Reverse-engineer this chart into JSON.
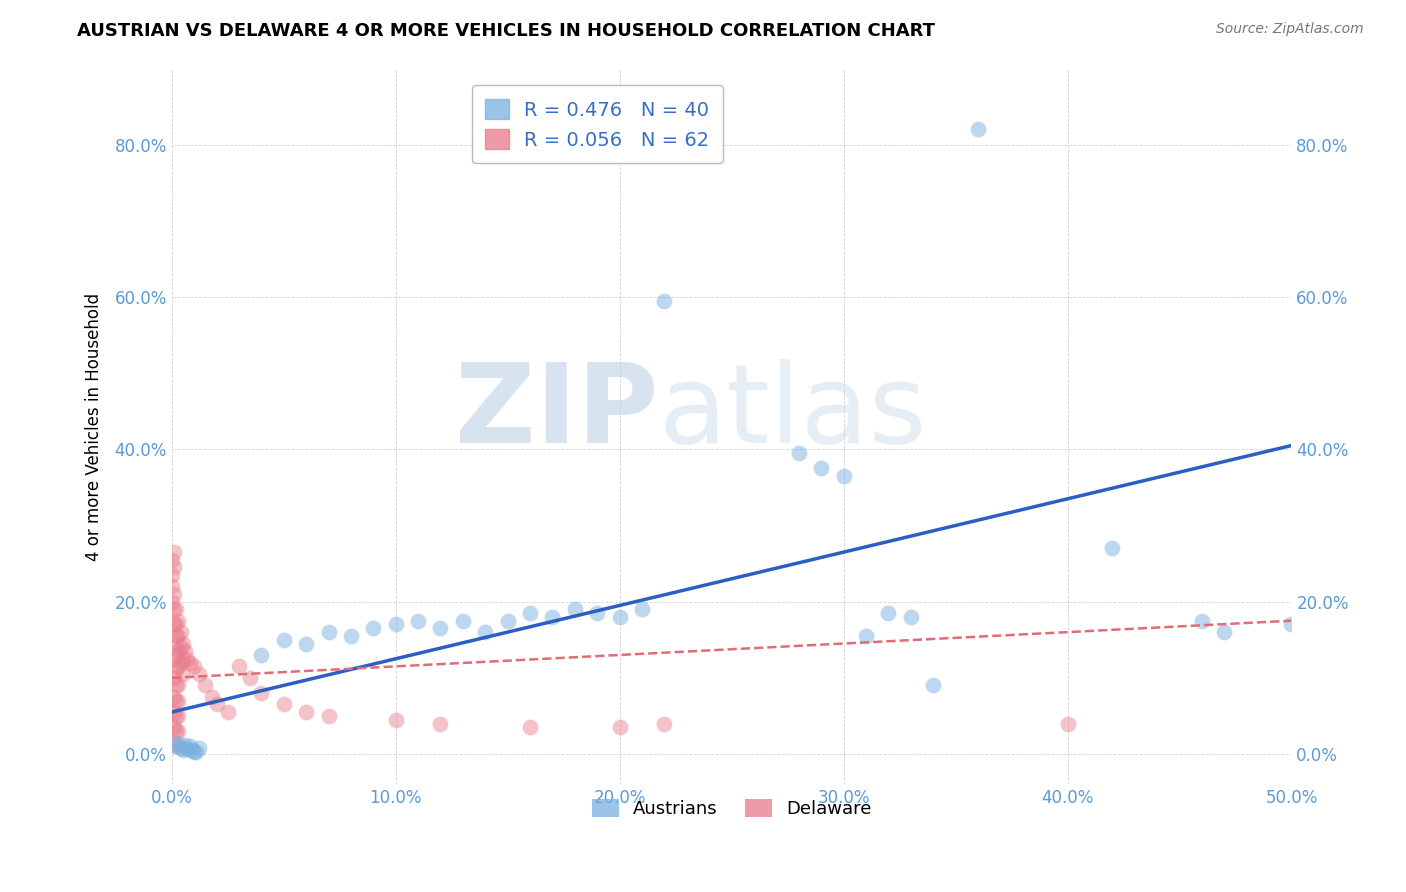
{
  "title": "AUSTRIAN VS DELAWARE 4 OR MORE VEHICLES IN HOUSEHOLD CORRELATION CHART",
  "source": "Source: ZipAtlas.com",
  "ylabel": "4 or more Vehicles in Household",
  "xlabel_ticks": [
    "0.0%",
    "10.0%",
    "20.0%",
    "30.0%",
    "40.0%",
    "50.0%"
  ],
  "ylabel_ticks_right": [
    "80.0%",
    "60.0%",
    "40.0%",
    "20.0%",
    "0.0%"
  ],
  "xlim": [
    0.0,
    0.5
  ],
  "ylim": [
    -0.04,
    0.9
  ],
  "blue_color": "#7ab0e0",
  "pink_color": "#e87a8a",
  "blue_scatter": [
    [
      0.002,
      0.01
    ],
    [
      0.003,
      0.015
    ],
    [
      0.004,
      0.008
    ],
    [
      0.005,
      0.005
    ],
    [
      0.006,
      0.012
    ],
    [
      0.007,
      0.007
    ],
    [
      0.008,
      0.01
    ],
    [
      0.009,
      0.005
    ],
    [
      0.01,
      0.003
    ],
    [
      0.011,
      0.002
    ],
    [
      0.012,
      0.008
    ],
    [
      0.04,
      0.13
    ],
    [
      0.05,
      0.15
    ],
    [
      0.06,
      0.145
    ],
    [
      0.07,
      0.16
    ],
    [
      0.08,
      0.155
    ],
    [
      0.09,
      0.165
    ],
    [
      0.1,
      0.17
    ],
    [
      0.11,
      0.175
    ],
    [
      0.12,
      0.165
    ],
    [
      0.13,
      0.175
    ],
    [
      0.14,
      0.16
    ],
    [
      0.15,
      0.175
    ],
    [
      0.16,
      0.185
    ],
    [
      0.17,
      0.18
    ],
    [
      0.18,
      0.19
    ],
    [
      0.19,
      0.185
    ],
    [
      0.2,
      0.18
    ],
    [
      0.21,
      0.19
    ],
    [
      0.22,
      0.595
    ],
    [
      0.28,
      0.395
    ],
    [
      0.29,
      0.375
    ],
    [
      0.3,
      0.365
    ],
    [
      0.31,
      0.155
    ],
    [
      0.32,
      0.185
    ],
    [
      0.33,
      0.18
    ],
    [
      0.34,
      0.09
    ],
    [
      0.36,
      0.82
    ],
    [
      0.42,
      0.27
    ],
    [
      0.46,
      0.175
    ],
    [
      0.47,
      0.16
    ],
    [
      0.5,
      0.17
    ]
  ],
  "pink_scatter": [
    [
      0.0,
      0.255
    ],
    [
      0.0,
      0.235
    ],
    [
      0.0,
      0.22
    ],
    [
      0.0,
      0.2
    ],
    [
      0.001,
      0.265
    ],
    [
      0.001,
      0.245
    ],
    [
      0.001,
      0.21
    ],
    [
      0.001,
      0.19
    ],
    [
      0.001,
      0.17
    ],
    [
      0.001,
      0.145
    ],
    [
      0.001,
      0.125
    ],
    [
      0.001,
      0.1
    ],
    [
      0.001,
      0.075
    ],
    [
      0.001,
      0.055
    ],
    [
      0.001,
      0.035
    ],
    [
      0.001,
      0.015
    ],
    [
      0.002,
      0.19
    ],
    [
      0.002,
      0.17
    ],
    [
      0.002,
      0.155
    ],
    [
      0.002,
      0.13
    ],
    [
      0.002,
      0.11
    ],
    [
      0.002,
      0.09
    ],
    [
      0.002,
      0.07
    ],
    [
      0.002,
      0.05
    ],
    [
      0.002,
      0.03
    ],
    [
      0.002,
      0.01
    ],
    [
      0.003,
      0.175
    ],
    [
      0.003,
      0.155
    ],
    [
      0.003,
      0.135
    ],
    [
      0.003,
      0.115
    ],
    [
      0.003,
      0.09
    ],
    [
      0.003,
      0.07
    ],
    [
      0.003,
      0.05
    ],
    [
      0.003,
      0.03
    ],
    [
      0.004,
      0.16
    ],
    [
      0.004,
      0.14
    ],
    [
      0.004,
      0.12
    ],
    [
      0.005,
      0.145
    ],
    [
      0.005,
      0.125
    ],
    [
      0.005,
      0.105
    ],
    [
      0.006,
      0.135
    ],
    [
      0.007,
      0.125
    ],
    [
      0.008,
      0.12
    ],
    [
      0.01,
      0.115
    ],
    [
      0.012,
      0.105
    ],
    [
      0.015,
      0.09
    ],
    [
      0.018,
      0.075
    ],
    [
      0.02,
      0.065
    ],
    [
      0.025,
      0.055
    ],
    [
      0.03,
      0.115
    ],
    [
      0.035,
      0.1
    ],
    [
      0.04,
      0.08
    ],
    [
      0.05,
      0.065
    ],
    [
      0.06,
      0.055
    ],
    [
      0.07,
      0.05
    ],
    [
      0.1,
      0.045
    ],
    [
      0.12,
      0.04
    ],
    [
      0.16,
      0.035
    ],
    [
      0.2,
      0.035
    ],
    [
      0.22,
      0.04
    ],
    [
      0.4,
      0.04
    ]
  ],
  "blue_line_x": [
    0.0,
    0.5
  ],
  "blue_line_y": [
    0.055,
    0.405
  ],
  "pink_line_x": [
    0.0,
    0.5
  ],
  "pink_line_y": [
    0.1,
    0.175
  ],
  "title_fontsize": 13,
  "source_fontsize": 10,
  "tick_fontsize": 12,
  "legend_fontsize": 14,
  "ylabel_fontsize": 12,
  "watermark_text": "ZIPatlas"
}
